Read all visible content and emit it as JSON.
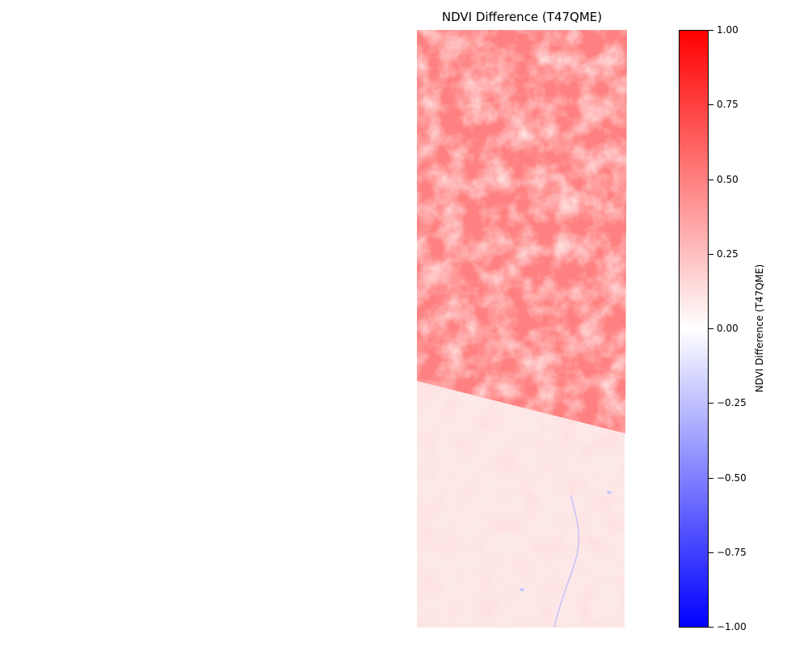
{
  "chart_data": {
    "type": "heatmap",
    "title": "NDVI Difference (T47QME)",
    "colorbar": {
      "label": "NDVI Difference (T47QME)",
      "range": [
        -1.0,
        1.0
      ],
      "colormap": "bwr",
      "colors": {
        "min": "#0000ff",
        "mid": "#ffffff",
        "max": "#ff0000"
      },
      "ticks": [
        {
          "value": 1.0,
          "label": "1.00"
        },
        {
          "value": 0.75,
          "label": "0.75"
        },
        {
          "value": 0.5,
          "label": "0.50"
        },
        {
          "value": 0.25,
          "label": "0.25"
        },
        {
          "value": 0.0,
          "label": "0.00"
        },
        {
          "value": -0.25,
          "label": "−0.25"
        },
        {
          "value": -0.5,
          "label": "−0.50"
        },
        {
          "value": -0.75,
          "label": "−0.75"
        },
        {
          "value": -1.0,
          "label": "−1.00"
        }
      ]
    },
    "regions": [
      {
        "name": "upper",
        "approx_value": 0.5
      },
      {
        "name": "lower",
        "approx_value": 0.12
      }
    ],
    "axes_visible": false
  }
}
